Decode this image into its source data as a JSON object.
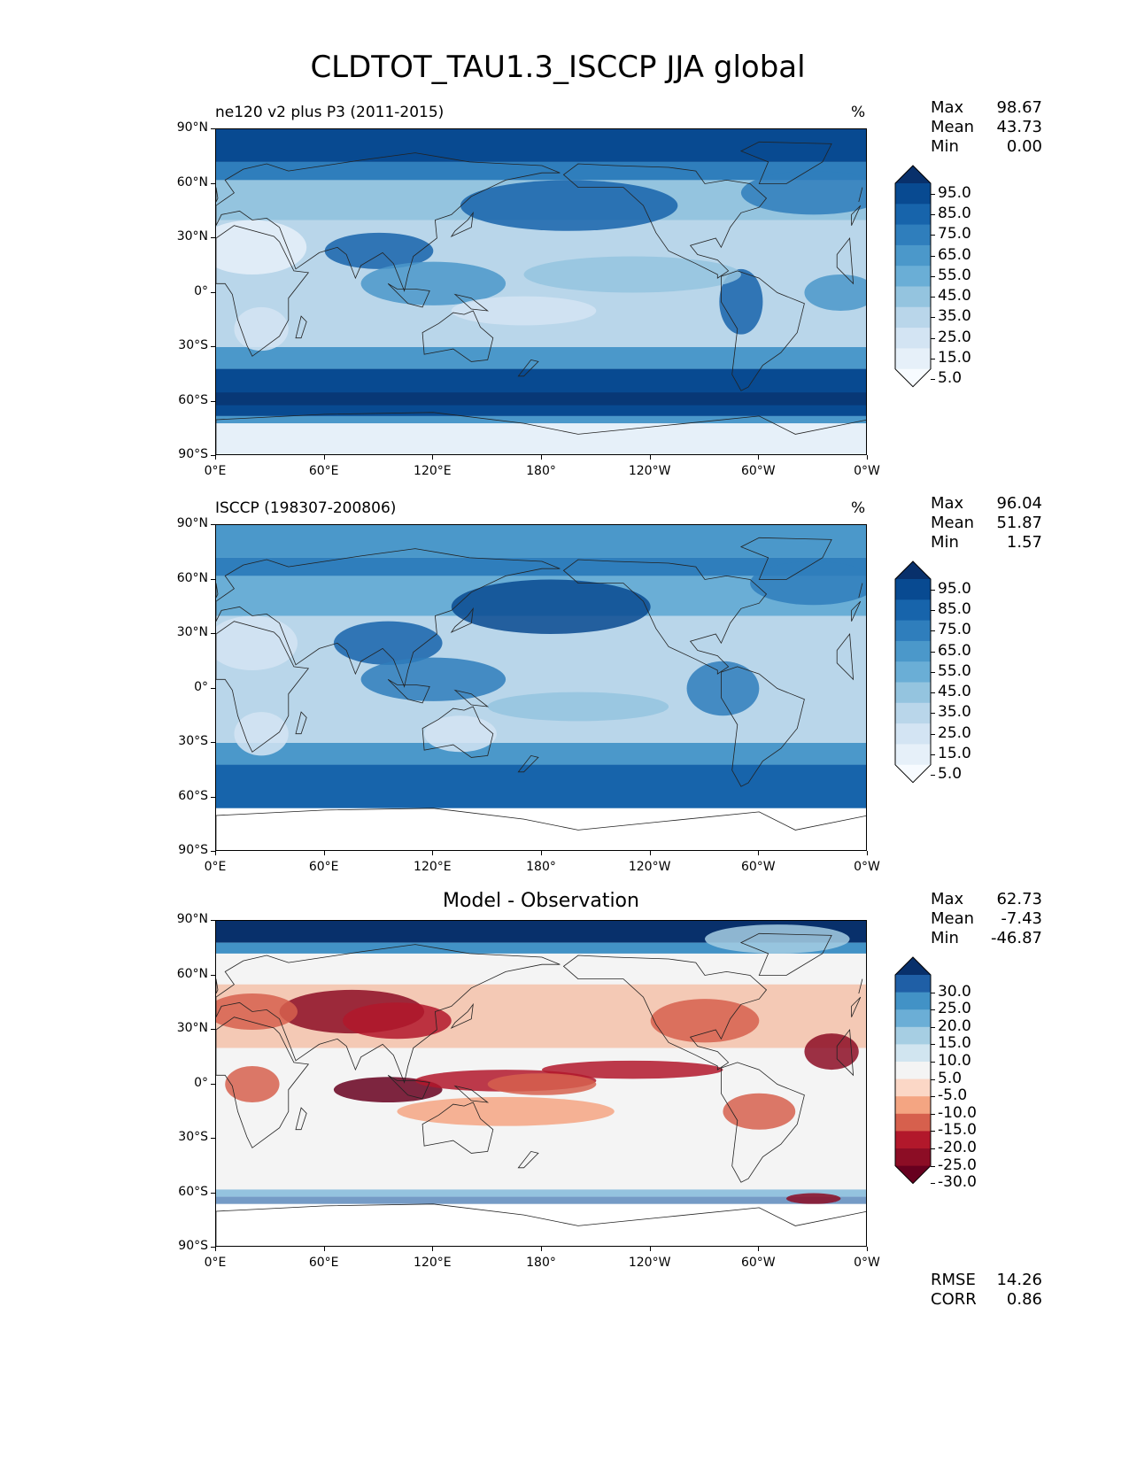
{
  "figure_title": "CLDTOT_TAU1.3_ISCCP JJA global",
  "lat_ticks": [
    "90°N",
    "60°N",
    "30°N",
    "0°",
    "30°S",
    "60°S",
    "90°S"
  ],
  "lon_ticks": [
    "0°E",
    "60°E",
    "120°E",
    "180°",
    "120°W",
    "60°W",
    "0°W"
  ],
  "panels": [
    {
      "title": "ne120 v2 plus P3 (2011-2015)",
      "units": "%",
      "stats": {
        "max_label": "Max",
        "max": "98.67",
        "mean_label": "Mean",
        "mean": "43.73",
        "min_label": "Min",
        "min": "0.00"
      },
      "colorbar": {
        "labels": [
          "95.0",
          "85.0",
          "75.0",
          "65.0",
          "55.0",
          "45.0",
          "35.0",
          "25.0",
          "15.0",
          "5.0"
        ],
        "colors": [
          "#08306b",
          "#084a91",
          "#1764ab",
          "#2f7ebc",
          "#4b98ca",
          "#6aaed6",
          "#94c4df",
          "#b9d6ea",
          "#d3e4f3",
          "#e6f0f9",
          "#f7fbff"
        ]
      }
    },
    {
      "title": "ISCCP (198307-200806)",
      "units": "%",
      "stats": {
        "max_label": "Max",
        "max": "96.04",
        "mean_label": "Mean",
        "mean": "51.87",
        "min_label": "Min",
        "min": "1.57"
      },
      "colorbar": {
        "labels": [
          "95.0",
          "85.0",
          "75.0",
          "65.0",
          "55.0",
          "45.0",
          "35.0",
          "25.0",
          "15.0",
          "5.0"
        ],
        "colors": [
          "#08306b",
          "#084a91",
          "#1764ab",
          "#2f7ebc",
          "#4b98ca",
          "#6aaed6",
          "#94c4df",
          "#b9d6ea",
          "#d3e4f3",
          "#e6f0f9",
          "#f7fbff"
        ]
      }
    },
    {
      "title": "Model - Observation",
      "stats": {
        "max_label": "Max",
        "max": "62.73",
        "mean_label": "Mean",
        "mean": "-7.43",
        "min_label": "Min",
        "min": "-46.87"
      },
      "colorbar": {
        "labels": [
          "30.0",
          "25.0",
          "20.0",
          "15.0",
          "10.0",
          "5.0",
          "-5.0",
          "-10.0",
          "-15.0",
          "-20.0",
          "-25.0",
          "-30.0"
        ],
        "colors": [
          "#08306b",
          "#1f5fa6",
          "#4292c6",
          "#6baed6",
          "#a6cee3",
          "#d1e5f0",
          "#f4f4f4",
          "#fbd7c6",
          "#f4a582",
          "#d6604d",
          "#b2182b",
          "#8c0d25",
          "#67001f"
        ]
      },
      "metrics": {
        "rmse_label": "RMSE",
        "rmse": "14.26",
        "corr_label": "CORR",
        "corr": "0.86"
      }
    }
  ],
  "chart_data": {
    "type": "heatmap",
    "projection": "PlateCarree",
    "xlabel": "",
    "ylabel": "",
    "lon_range": [
      0,
      360
    ],
    "lat_range": [
      -90,
      90
    ],
    "panels": [
      "ne120 v2 plus P3 (2011-2015)",
      "ISCCP (198307-200806)",
      "Model - Observation"
    ],
    "contour_levels_fields": [
      5,
      15,
      25,
      35,
      45,
      55,
      65,
      75,
      85,
      95
    ],
    "contour_levels_diff": [
      -30,
      -25,
      -20,
      -15,
      -10,
      -5,
      5,
      10,
      15,
      20,
      25,
      30
    ],
    "stats": [
      {
        "panel": "ne120 v2 plus P3 (2011-2015)",
        "max": 98.67,
        "mean": 43.73,
        "min": 0.0
      },
      {
        "panel": "ISCCP (198307-200806)",
        "max": 96.04,
        "mean": 51.87,
        "min": 1.57
      },
      {
        "panel": "Model - Observation",
        "max": 62.73,
        "mean": -7.43,
        "min": -46.87,
        "rmse": 14.26,
        "corr": 0.86
      }
    ]
  }
}
